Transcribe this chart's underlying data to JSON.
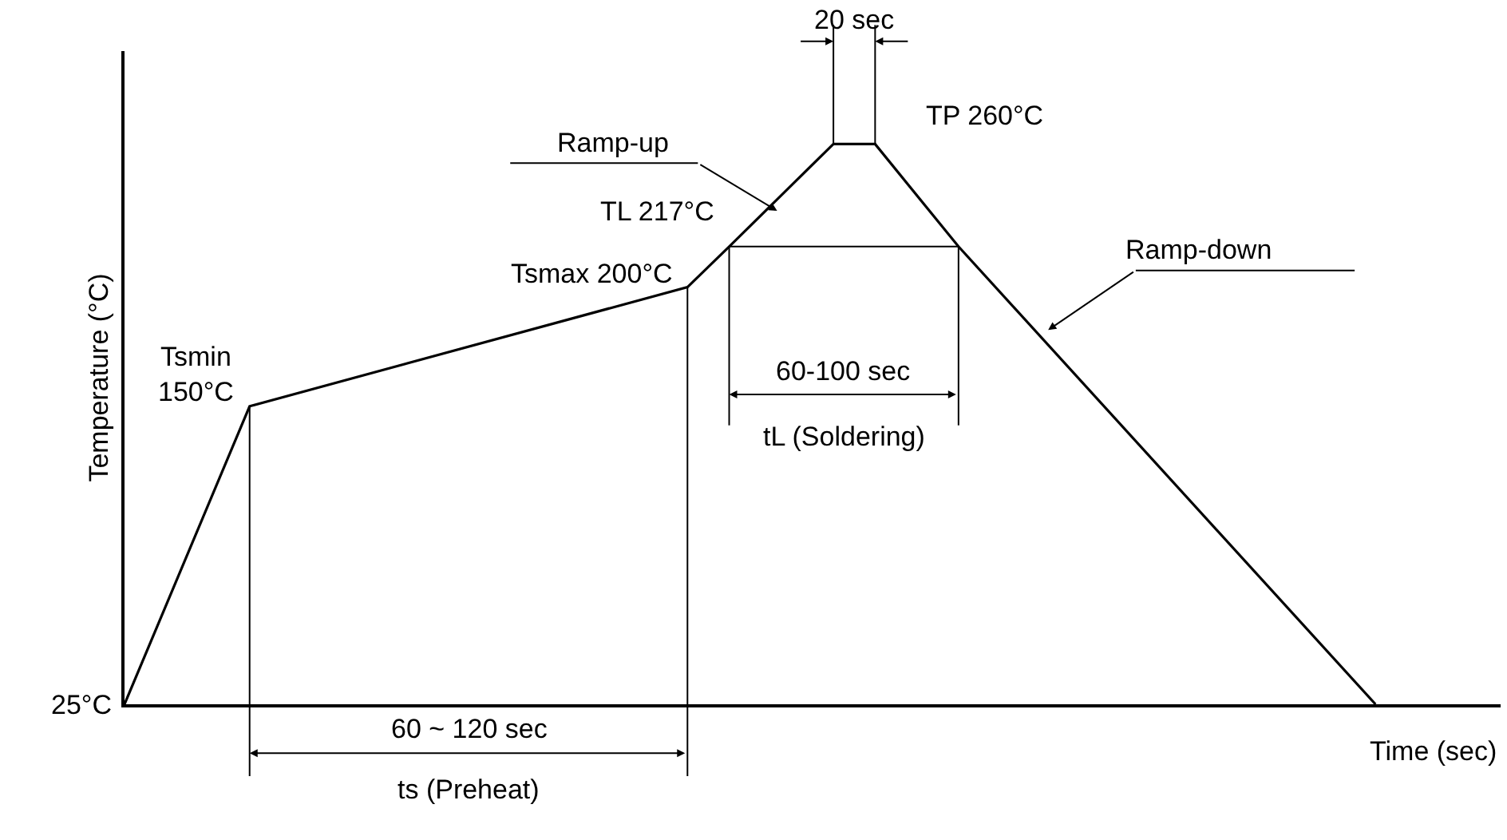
{
  "chart_data": {
    "type": "line",
    "xlabel": "Time (sec)",
    "ylabel": "Temperature (°C)",
    "color": "#000000",
    "categories": [
      null,
      null,
      null,
      null,
      null,
      null,
      null,
      null,
      null,
      null,
      null,
      null,
      null,
      null,
      null,
      null,
      null,
      null,
      null,
      null,
      null,
      null,
      null,
      null,
      null,
      null,
      null,
      null,
      null,
      null,
      null,
      null,
      null,
      null,
      null,
      null,
      null,
      null,
      null,
      null,
      null,
      null,
      null,
      null,
      null,
      null,
      null,
      null,
      null,
      null,
      null,
      null,
      null,
      null,
      null,
      null,
      null,
      null,
      null,
      null,
      null
    ],
    "values": [
      25,
      null,
      null,
      null,
      null,
      null,
      150,
      null,
      null,
      null,
      null,
      null,
      null,
      null,
      null,
      null,
      null,
      null,
      null,
      null,
      null,
      null,
      null,
      null,
      null,
      null,
      null,
      200,
      null,
      217,
      null,
      null,
      null,
      null,
      260,
      null,
      260,
      null,
      null,
      null,
      217,
      null,
      null,
      null,
      null,
      null,
      null,
      null,
      null,
      null,
      null,
      null,
      null,
      null,
      null,
      null,
      null,
      null,
      null,
      null,
      25
    ],
    "value_labels": [
      "25°C",
      null,
      null,
      null,
      null,
      null,
      "Tsmin\n150°C",
      null,
      null,
      null,
      null,
      null,
      null,
      null,
      null,
      null,
      null,
      null,
      null,
      null,
      null,
      null,
      null,
      null,
      null,
      null,
      null,
      "Tsmax 200°C",
      null,
      "TL 217°C",
      null,
      null,
      null,
      null,
      null,
      null,
      "TP 260°C",
      null,
      null,
      null,
      null,
      null,
      null,
      null,
      null,
      null,
      null,
      null,
      null,
      null,
      null,
      null,
      null,
      null,
      null,
      null,
      null,
      null,
      null,
      null,
      null
    ],
    "tick_labels": false,
    "annotations": [
      "Ramp-up",
      "20 sec",
      "60-100 sec",
      "tL (Soldering)",
      "60 ~ 120 sec",
      "ts (Preheat)",
      "Ramp-down"
    ]
  }
}
